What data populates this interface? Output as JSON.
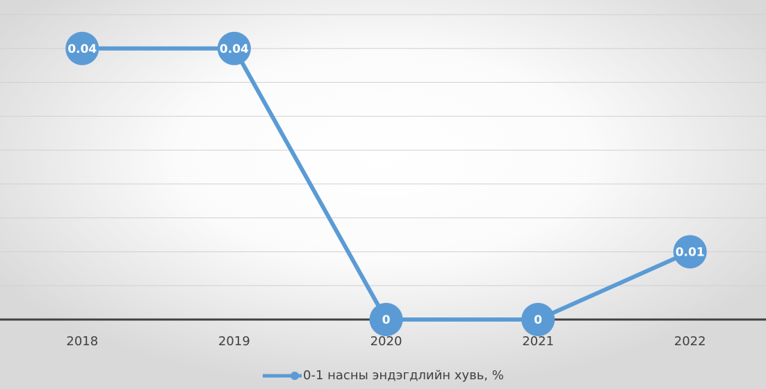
{
  "chart_data": {
    "type": "line",
    "categories": [
      "2018",
      "2019",
      "2020",
      "2021",
      "2022"
    ],
    "series": [
      {
        "name": "0-1 насны эндэгдлийн хувь, %",
        "color": "#5b9bd5",
        "values": [
          0.04,
          0.04,
          0,
          0,
          0.01
        ]
      }
    ],
    "ylim": [
      0,
      0.045
    ],
    "yticks": [
      0,
      0.005,
      0.01,
      0.015,
      0.02,
      0.025,
      0.03,
      0.035,
      0.04,
      0.045
    ],
    "grid": true,
    "legend": "bottom"
  }
}
